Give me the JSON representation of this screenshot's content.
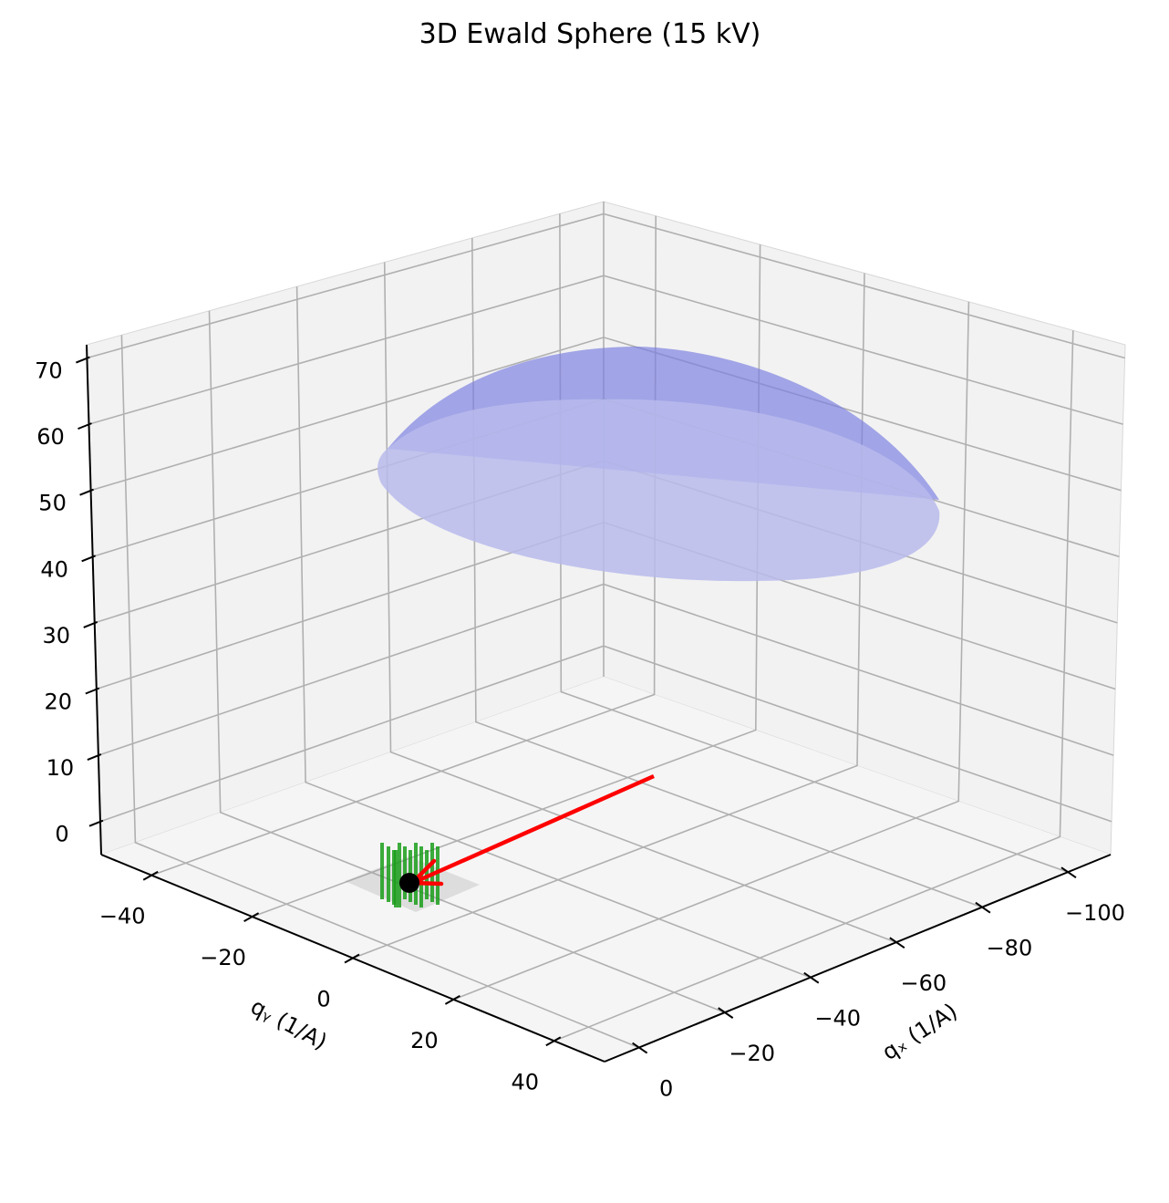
{
  "chart_data": {
    "type": "scatter",
    "projection": "3d",
    "title": "3D Ewald Sphere (15 kV)",
    "xlabel": "qₓ (1/A)",
    "ylabel": "qᵧ (1/A)",
    "zlabel": "",
    "x_ticks": [
      "−100",
      "−80",
      "−60",
      "−40",
      "−20",
      "0"
    ],
    "y_ticks": [
      "−40",
      "−20",
      "0",
      "20",
      "40"
    ],
    "z_ticks": [
      "0",
      "10",
      "20",
      "30",
      "40",
      "50",
      "60",
      "70"
    ],
    "xlim": [
      -110,
      8
    ],
    "ylim": [
      -50,
      50
    ],
    "zlim": [
      -5,
      72
    ],
    "grid": true,
    "series": [
      {
        "kind": "surface",
        "label": "Ewald sphere",
        "color": "#7b7fe0",
        "opacity": 0.4
      },
      {
        "kind": "arrow",
        "label": "incident beam",
        "color": "#ff0000",
        "from": [
          -65,
          0,
          0
        ],
        "to": [
          0,
          0,
          0
        ]
      },
      {
        "kind": "point",
        "label": "origin",
        "color": "#000000",
        "x": 0,
        "y": 0,
        "z": 0
      },
      {
        "kind": "rods",
        "label": "reciprocal lattice rods",
        "color": "#1a9e1a",
        "count": 12
      },
      {
        "kind": "plane",
        "label": "sample plane",
        "color": "#999999",
        "opacity": 0.25
      }
    ]
  }
}
